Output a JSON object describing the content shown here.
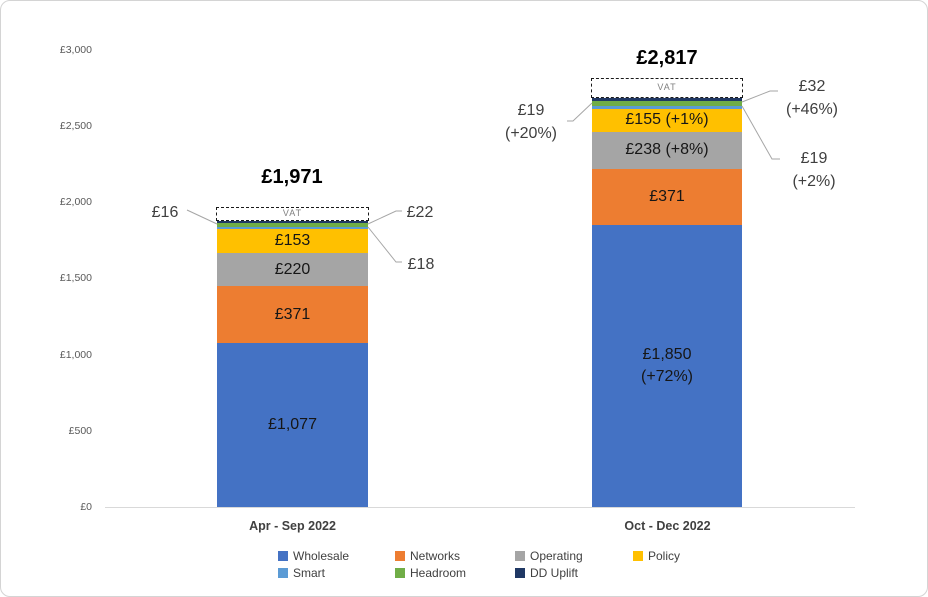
{
  "chart_data": {
    "type": "bar",
    "stacked": true,
    "title": "",
    "categories": [
      "Apr - Sep 2022",
      "Oct - Dec 2022"
    ],
    "totals": [
      "£1,971",
      "£2,817"
    ],
    "series": [
      {
        "name": "Wholesale",
        "color": "#4472C4",
        "values": [
          1077,
          1850
        ],
        "labels": [
          [
            "£1,077"
          ],
          [
            "£1,850",
            "(+72%)"
          ]
        ]
      },
      {
        "name": "Networks",
        "color": "#ED7D31",
        "values": [
          371,
          371
        ],
        "labels": [
          [
            "£371"
          ],
          [
            "£371"
          ]
        ]
      },
      {
        "name": "Operating",
        "color": "#A5A5A5",
        "values": [
          220,
          238
        ],
        "labels": [
          [
            "£220"
          ],
          [
            "£238 (+8%)"
          ]
        ]
      },
      {
        "name": "Policy",
        "color": "#FFC000",
        "values": [
          153,
          155
        ],
        "labels": [
          [
            "£153"
          ],
          [
            "£155 (+1%)"
          ]
        ]
      },
      {
        "name": "Smart",
        "color": "#5B9BD5",
        "values": [
          18,
          19
        ],
        "labels": [
          [],
          []
        ]
      },
      {
        "name": "Headroom",
        "color": "#70AD47",
        "values": [
          22,
          32
        ],
        "labels": [
          [],
          []
        ]
      },
      {
        "name": "DD Uplift",
        "color": "#203864",
        "values": [
          16,
          19
        ],
        "labels": [
          [],
          []
        ]
      }
    ],
    "vat": {
      "label": "VAT",
      "values": [
        94,
        133
      ]
    },
    "callouts": [
      {
        "bar": 0,
        "side": "left",
        "lines": [
          "£16"
        ]
      },
      {
        "bar": 0,
        "side": "right-top",
        "lines": [
          "£22"
        ]
      },
      {
        "bar": 0,
        "side": "right-bottom",
        "lines": [
          "£18"
        ]
      },
      {
        "bar": 1,
        "side": "left",
        "lines": [
          "£19",
          "(+20%)"
        ]
      },
      {
        "bar": 1,
        "side": "right-top",
        "lines": [
          "£32",
          "(+46%)"
        ]
      },
      {
        "bar": 1,
        "side": "right-bottom",
        "lines": [
          "£19",
          "(+2%)"
        ]
      }
    ],
    "y_axis": {
      "min": 0,
      "max": 3000,
      "step": 500,
      "tick_labels": [
        "£3,000",
        "£2,500",
        "£2,000",
        "£1,500",
        "£1,000",
        "£500",
        "£0"
      ]
    },
    "legend": [
      "Wholesale",
      "Networks",
      "Operating",
      "Policy",
      "Smart",
      "Headroom",
      "DD Uplift"
    ],
    "grid": "off",
    "legend_position": "bottom"
  }
}
